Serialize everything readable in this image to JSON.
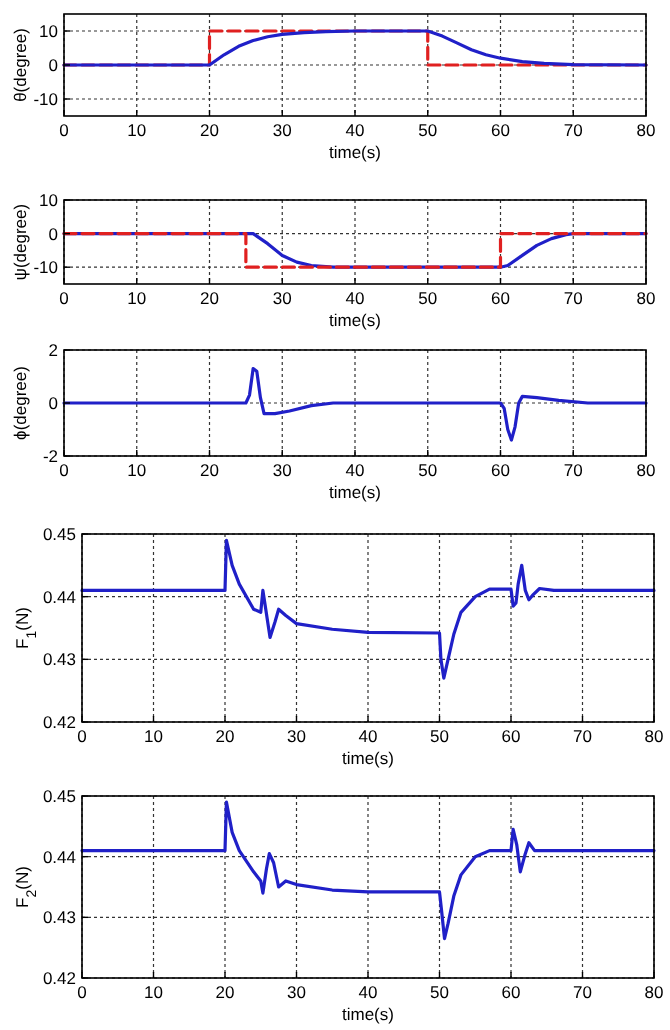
{
  "chart_data": [
    {
      "type": "line",
      "xlabel": "time(s)",
      "ylabel": "θ(degree)",
      "xlim": [
        0,
        80
      ],
      "xticks": [
        0,
        10,
        20,
        30,
        40,
        50,
        60,
        70,
        80
      ],
      "ylim": [
        -15,
        15
      ],
      "yticks": [
        -10,
        0,
        10
      ],
      "grid": true,
      "series": [
        {
          "color": "#e02020",
          "line_style": "dashed",
          "x": [
            0,
            20,
            20,
            50,
            50,
            80
          ],
          "values": [
            0,
            0,
            10,
            10,
            0,
            0
          ]
        },
        {
          "color": "#2020c8",
          "line_style": "solid",
          "x": [
            0,
            20,
            22,
            24,
            26,
            28,
            30,
            33,
            36,
            40,
            50,
            52,
            54,
            56,
            58,
            60,
            63,
            66,
            70,
            80
          ],
          "values": [
            0,
            0,
            3,
            5.5,
            7.2,
            8.3,
            9,
            9.5,
            9.8,
            10,
            10,
            8.5,
            6.5,
            4.5,
            3,
            2,
            1,
            0.5,
            0.1,
            0
          ]
        }
      ]
    },
    {
      "type": "line",
      "xlabel": "time(s)",
      "ylabel": "ψ(degree)",
      "xlim": [
        0,
        80
      ],
      "xticks": [
        0,
        10,
        20,
        30,
        40,
        50,
        60,
        70,
        80
      ],
      "ylim": [
        -15,
        10
      ],
      "yticks": [
        -10,
        0,
        10
      ],
      "grid": true,
      "series": [
        {
          "color": "#2020c8",
          "line_style": "solid",
          "x": [
            0,
            26,
            28,
            30,
            32,
            34,
            37,
            60,
            61,
            63,
            65,
            67,
            69,
            70,
            80
          ],
          "values": [
            0,
            0,
            -3,
            -6.5,
            -8.5,
            -9.5,
            -10,
            -10,
            -9.5,
            -6.5,
            -3.5,
            -1.5,
            -0.3,
            0,
            0
          ]
        },
        {
          "color": "#e02020",
          "line_style": "dashed",
          "x": [
            0,
            25,
            25,
            60,
            60,
            80
          ],
          "values": [
            0,
            0,
            -10,
            -10,
            0,
            0
          ]
        }
      ]
    },
    {
      "type": "line",
      "xlabel": "time(s)",
      "ylabel": "ϕ(degree)",
      "xlim": [
        0,
        80
      ],
      "xticks": [
        0,
        10,
        20,
        30,
        40,
        50,
        60,
        70,
        80
      ],
      "ylim": [
        -2,
        2
      ],
      "yticks": [
        -2,
        0,
        2
      ],
      "grid": true,
      "series": [
        {
          "color": "#2020c8",
          "line_style": "solid",
          "x": [
            0,
            25,
            25.5,
            26,
            26.5,
            27,
            27.5,
            29,
            31,
            34,
            37,
            60,
            60.5,
            61,
            61.5,
            62,
            62.5,
            63,
            65,
            68,
            72,
            80
          ],
          "values": [
            0,
            0,
            0.3,
            1.3,
            1.2,
            0.2,
            -0.4,
            -0.4,
            -0.3,
            -0.1,
            0,
            0,
            -0.2,
            -1,
            -1.4,
            -0.9,
            0,
            0.25,
            0.2,
            0.1,
            0,
            0
          ]
        }
      ]
    },
    {
      "type": "line",
      "xlabel": "time(s)",
      "ylabel": "F$_{1}$(N)",
      "xlim": [
        0,
        80
      ],
      "xticks": [
        0,
        10,
        20,
        30,
        40,
        50,
        60,
        70,
        80
      ],
      "ylim": [
        0.42,
        0.45
      ],
      "yticks": [
        0.42,
        0.43,
        0.44,
        0.45
      ],
      "grid": true,
      "series": [
        {
          "color": "#2020c8",
          "line_style": "solid",
          "x": [
            0,
            20,
            20.2,
            21,
            22,
            24,
            25,
            25.3,
            25.7,
            26.3,
            27,
            27.5,
            28.5,
            30,
            35,
            40,
            50,
            50.2,
            50.6,
            51,
            52,
            53,
            55,
            57,
            60,
            60.3,
            60.7,
            61,
            61.5,
            62,
            62.5,
            63,
            64,
            66,
            80
          ],
          "values": [
            0.441,
            0.441,
            0.449,
            0.445,
            0.442,
            0.438,
            0.4375,
            0.441,
            0.438,
            0.4335,
            0.436,
            0.438,
            0.437,
            0.4357,
            0.4348,
            0.4343,
            0.4342,
            0.43,
            0.427,
            0.429,
            0.434,
            0.4375,
            0.44,
            0.4412,
            0.4412,
            0.4385,
            0.439,
            0.442,
            0.445,
            0.441,
            0.4395,
            0.4402,
            0.4413,
            0.441,
            0.441
          ]
        }
      ]
    },
    {
      "type": "line",
      "xlabel": "time(s)",
      "ylabel": "F$_{2}$(N)",
      "xlim": [
        0,
        80
      ],
      "xticks": [
        0,
        10,
        20,
        30,
        40,
        50,
        60,
        70,
        80
      ],
      "ylim": [
        0.42,
        0.45
      ],
      "yticks": [
        0.42,
        0.43,
        0.44,
        0.45
      ],
      "grid": true,
      "series": [
        {
          "color": "#2020c8",
          "line_style": "solid",
          "x": [
            0,
            20,
            20.2,
            21,
            22,
            24,
            25,
            25.3,
            25.8,
            26.2,
            26.8,
            27.5,
            28.5,
            30,
            35,
            40,
            50,
            50.3,
            50.7,
            51.2,
            52,
            53,
            55,
            57,
            60,
            60.3,
            60.8,
            61.3,
            62,
            62.5,
            63.3,
            64,
            80
          ],
          "values": [
            0.441,
            0.441,
            0.449,
            0.444,
            0.441,
            0.4375,
            0.436,
            0.434,
            0.438,
            0.4405,
            0.439,
            0.435,
            0.436,
            0.4354,
            0.4345,
            0.4342,
            0.4342,
            0.431,
            0.4265,
            0.429,
            0.4335,
            0.437,
            0.44,
            0.441,
            0.441,
            0.4445,
            0.442,
            0.4375,
            0.4405,
            0.4423,
            0.441,
            0.441,
            0.441
          ]
        }
      ]
    }
  ]
}
